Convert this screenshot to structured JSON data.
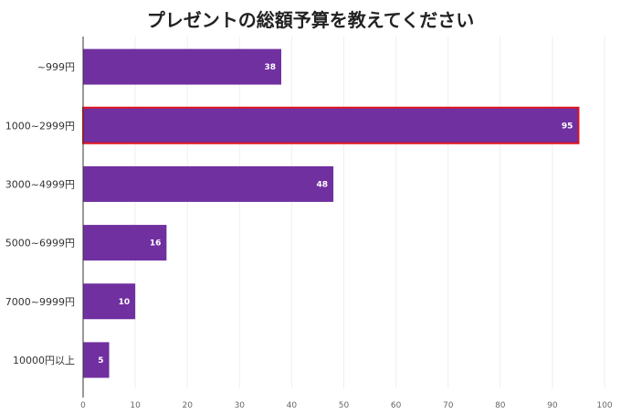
{
  "chart_data": {
    "type": "bar",
    "orientation": "horizontal",
    "title": "プレゼントの総額予算を教えてください",
    "categories": [
      "~999円",
      "1000~2999円",
      "3000~4999円",
      "5000~6999円",
      "7000~9999円",
      "10000円以上"
    ],
    "values": [
      38,
      95,
      48,
      16,
      10,
      5
    ],
    "highlighted_category": "1000~2999円",
    "xlim": [
      0,
      100
    ],
    "xticks": [
      0,
      10,
      20,
      30,
      40,
      50,
      60,
      70,
      80,
      90,
      100
    ],
    "grid": true,
    "colors": {
      "bar": "#7030a0",
      "highlight_border": "#e0141e",
      "grid": "#eeeeee",
      "axis": "#333333"
    }
  }
}
